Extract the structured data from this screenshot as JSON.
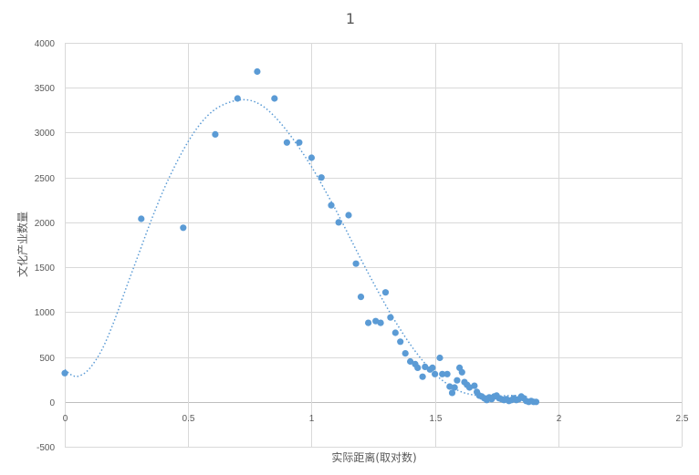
{
  "chart_data": {
    "type": "scatter",
    "title": "1",
    "xlabel": "实际距离(取对数)",
    "ylabel": "文化产业数量",
    "xlim": [
      0,
      2.5
    ],
    "ylim": [
      -500,
      4000
    ],
    "xticks": [
      0,
      0.5,
      1,
      1.5,
      2,
      2.5
    ],
    "xtick_labels": [
      "0",
      "0.5",
      "1",
      "1.5",
      "2",
      "2.5"
    ],
    "yticks": [
      -500,
      0,
      500,
      1000,
      1500,
      2000,
      2500,
      3000,
      3500,
      4000
    ],
    "ytick_labels": [
      "-500",
      "0",
      "500",
      "1000",
      "1500",
      "2000",
      "2500",
      "3000",
      "3500",
      "4000"
    ],
    "grid": true,
    "marker_color": "#5b9bd5",
    "trendline": {
      "type": "polynomial",
      "color": "#5b9bd5",
      "points": [
        [
          0.0,
          360
        ],
        [
          0.03,
          295
        ],
        [
          0.06,
          290
        ],
        [
          0.1,
          370
        ],
        [
          0.15,
          580
        ],
        [
          0.2,
          900
        ],
        [
          0.25,
          1280
        ],
        [
          0.3,
          1650
        ],
        [
          0.35,
          2020
        ],
        [
          0.4,
          2360
        ],
        [
          0.45,
          2650
        ],
        [
          0.5,
          2900
        ],
        [
          0.55,
          3100
        ],
        [
          0.6,
          3240
        ],
        [
          0.65,
          3320
        ],
        [
          0.7,
          3360
        ],
        [
          0.75,
          3360
        ],
        [
          0.8,
          3300
        ],
        [
          0.85,
          3180
        ],
        [
          0.9,
          3020
        ],
        [
          0.95,
          2830
        ],
        [
          1.0,
          2620
        ],
        [
          1.05,
          2380
        ],
        [
          1.1,
          2130
        ],
        [
          1.15,
          1860
        ],
        [
          1.2,
          1590
        ],
        [
          1.25,
          1330
        ],
        [
          1.3,
          1080
        ],
        [
          1.35,
          850
        ],
        [
          1.4,
          640
        ],
        [
          1.45,
          460
        ],
        [
          1.5,
          310
        ],
        [
          1.55,
          200
        ],
        [
          1.6,
          120
        ],
        [
          1.65,
          80
        ],
        [
          1.7,
          65
        ],
        [
          1.75,
          65
        ],
        [
          1.8,
          70
        ],
        [
          1.85,
          70
        ],
        [
          1.88,
          50
        ]
      ]
    },
    "series": [
      {
        "points": [
          [
            0.0,
            320
          ],
          [
            0.31,
            2040
          ],
          [
            0.48,
            1940
          ],
          [
            0.61,
            2980
          ],
          [
            0.7,
            3380
          ],
          [
            0.78,
            3680
          ],
          [
            0.85,
            3380
          ],
          [
            0.9,
            2890
          ],
          [
            0.95,
            2890
          ],
          [
            1.0,
            2720
          ],
          [
            1.04,
            2500
          ],
          [
            1.08,
            2190
          ],
          [
            1.11,
            2000
          ],
          [
            1.15,
            2080
          ],
          [
            1.18,
            1540
          ],
          [
            1.2,
            1170
          ],
          [
            1.23,
            880
          ],
          [
            1.26,
            900
          ],
          [
            1.28,
            880
          ],
          [
            1.3,
            1220
          ],
          [
            1.32,
            940
          ],
          [
            1.34,
            770
          ],
          [
            1.36,
            670
          ],
          [
            1.38,
            540
          ],
          [
            1.4,
            450
          ],
          [
            1.42,
            420
          ],
          [
            1.43,
            380
          ],
          [
            1.45,
            280
          ],
          [
            1.46,
            390
          ],
          [
            1.48,
            360
          ],
          [
            1.49,
            380
          ],
          [
            1.5,
            310
          ],
          [
            1.52,
            490
          ],
          [
            1.53,
            310
          ],
          [
            1.55,
            310
          ],
          [
            1.56,
            170
          ],
          [
            1.57,
            100
          ],
          [
            1.58,
            160
          ],
          [
            1.59,
            240
          ],
          [
            1.6,
            380
          ],
          [
            1.61,
            330
          ],
          [
            1.62,
            220
          ],
          [
            1.63,
            190
          ],
          [
            1.64,
            160
          ],
          [
            1.66,
            180
          ],
          [
            1.67,
            110
          ],
          [
            1.68,
            70
          ],
          [
            1.69,
            60
          ],
          [
            1.7,
            40
          ],
          [
            1.71,
            20
          ],
          [
            1.72,
            50
          ],
          [
            1.73,
            30
          ],
          [
            1.74,
            60
          ],
          [
            1.75,
            70
          ],
          [
            1.76,
            40
          ],
          [
            1.77,
            30
          ],
          [
            1.78,
            20
          ],
          [
            1.79,
            30
          ],
          [
            1.8,
            10
          ],
          [
            1.81,
            20
          ],
          [
            1.82,
            40
          ],
          [
            1.83,
            20
          ],
          [
            1.84,
            30
          ],
          [
            1.85,
            60
          ],
          [
            1.86,
            40
          ],
          [
            1.87,
            10
          ],
          [
            1.88,
            0
          ],
          [
            1.89,
            10
          ],
          [
            1.9,
            0
          ],
          [
            1.91,
            0
          ]
        ]
      }
    ]
  }
}
